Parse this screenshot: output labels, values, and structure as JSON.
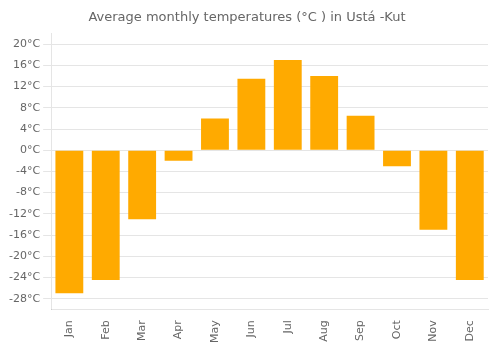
{
  "chart_data": {
    "type": "bar",
    "title": "Average monthly temperatures (°C ) in Ustа́ -Kut",
    "categories": [
      "Jan",
      "Feb",
      "Mar",
      "Apr",
      "May",
      "Jun",
      "Jul",
      "Aug",
      "Sep",
      "Oct",
      "Nov",
      "Dec"
    ],
    "values": [
      -27,
      -24.5,
      -13,
      -2,
      6,
      13.5,
      17,
      14,
      6.5,
      -3,
      -15,
      -24.5
    ],
    "color": "#FFAA00",
    "ylim": [
      -30,
      22
    ],
    "yticks": [
      {
        "value": -28,
        "label": "-28°C"
      },
      {
        "value": -24,
        "label": "-24°C"
      },
      {
        "value": -20,
        "label": "-20°C"
      },
      {
        "value": -16,
        "label": "-16°C"
      },
      {
        "value": -12,
        "label": "-12°C"
      },
      {
        "value": -8,
        "label": "-8°C"
      },
      {
        "value": -4,
        "label": "-4°C"
      },
      {
        "value": 0,
        "label": "0°C"
      },
      {
        "value": 4,
        "label": "4°C"
      },
      {
        "value": 8,
        "label": "8°C"
      },
      {
        "value": 12,
        "label": "12°C"
      },
      {
        "value": 16,
        "label": "16°C"
      },
      {
        "value": 20,
        "label": "20°C"
      }
    ],
    "grid": true
  }
}
